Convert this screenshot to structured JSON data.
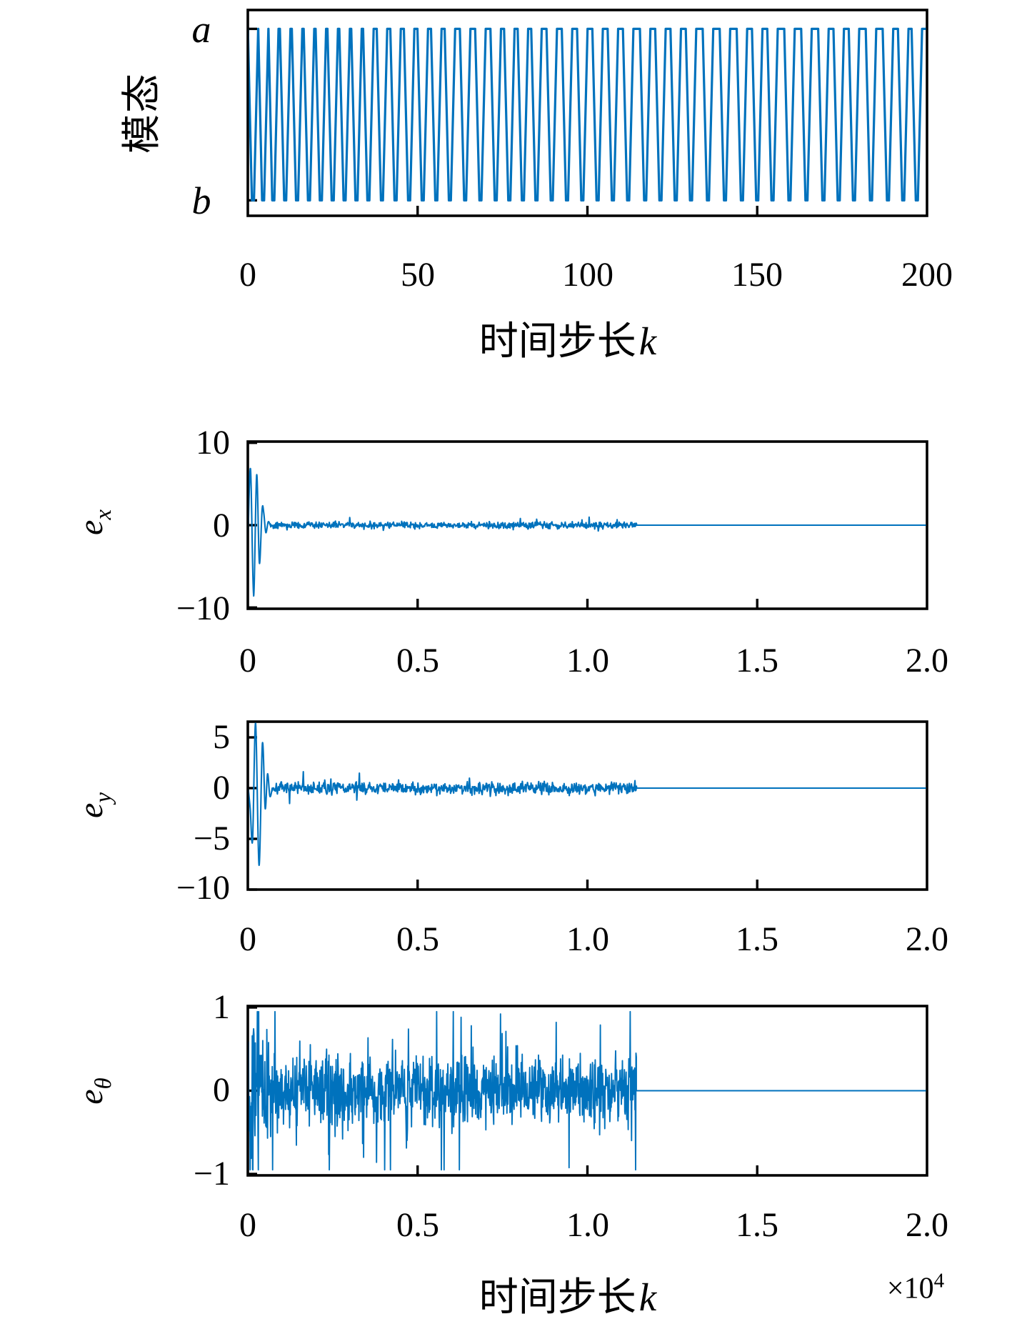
{
  "figure": {
    "background": "#ffffff",
    "frame_color": "#000000",
    "line_color": "#0072BD"
  },
  "text": {
    "p1": {
      "ylabel": "模态",
      "yt_a": "a",
      "yt_b": "b",
      "xt": [
        "0",
        "50",
        "100",
        "150",
        "200"
      ],
      "xlabel_cn": "时间步长",
      "xlabel_var": "k"
    },
    "p2": {
      "ylabel_e": "e",
      "ylabel_sub": "x",
      "yt": [
        "10",
        "0",
        "−10"
      ],
      "xt": [
        "0",
        "0.5",
        "1.0",
        "1.5",
        "2.0"
      ]
    },
    "p3": {
      "ylabel_e": "e",
      "ylabel_sub": "y",
      "yt": [
        "5",
        "0",
        "−5",
        "−10"
      ],
      "xt": [
        "0",
        "0.5",
        "1.0",
        "1.5",
        "2.0"
      ]
    },
    "p4": {
      "ylabel_e": "e",
      "ylabel_sub": "θ",
      "yt": [
        "1",
        "0",
        "−1"
      ],
      "xt": [
        "0",
        "0.5",
        "1.0",
        "1.5",
        "2.0"
      ],
      "xlabel_cn": "时间步长",
      "xlabel_var": "k",
      "exp_prefix": "×10",
      "exp_sup": "4"
    }
  },
  "chart_data": [
    {
      "id": "mode-switching",
      "type": "line",
      "title": "",
      "ylabel": "模态",
      "xlabel": "时间步长k",
      "xlim": [
        0,
        200
      ],
      "xticks": [
        0,
        50,
        100,
        150,
        200
      ],
      "xtick_labels": [
        "0",
        "50",
        "100",
        "150",
        "200"
      ],
      "ytick_labels": [
        "a",
        "b"
      ],
      "ytick_values": [
        1,
        0
      ],
      "ylim": [
        -0.09,
        1.11
      ],
      "grid": false,
      "line_color": "#0072BD",
      "stroke_width": 3.2,
      "behavior": "square wave switching between mode a (high) and mode b (low), narrow V dips to b",
      "signal": {
        "kind": "mode-square",
        "level_a": 1,
        "level_b": 0,
        "dip_half_width": 1.55,
        "dip_bottom_half": 0.3,
        "dips": [
          1.5,
          4.5,
          7.5,
          11,
          14.5,
          18,
          21.5,
          25,
          28.5,
          32,
          35.5,
          39.5,
          43.5,
          47.5,
          51.5,
          55.5,
          59.5,
          64,
          68.5,
          73,
          77,
          81,
          85,
          89.5,
          94,
          98.5,
          103,
          107.5,
          112,
          117,
          121.5,
          126,
          130.5,
          135.5,
          140.5,
          145.5,
          150,
          154.5,
          159.5,
          164.5,
          169.5,
          174,
          178.5,
          183.5,
          188.5,
          193,
          197
        ]
      }
    },
    {
      "id": "error-x",
      "type": "line",
      "title": "",
      "ylabel": "e_x",
      "xlabel": "",
      "xlim": [
        0,
        20000
      ],
      "xticks": [
        0,
        5000,
        10000,
        15000,
        20000
      ],
      "xtick_labels": [
        "0",
        "0.5",
        "1.0",
        "1.5",
        "2.0"
      ],
      "x_multiplier": "1e4",
      "ytick_values": [
        10,
        0,
        -10
      ],
      "ytick_labels": [
        "10",
        "0",
        "−10"
      ],
      "ylim": [
        -10.15,
        10.15
      ],
      "grid": false,
      "line_color": "#0072BD",
      "stroke_width": 2.1,
      "behavior": "damped oscillation peaking +6.8/−8.6 then small noise around 0, converges to exactly 0 after k≈1.15e4",
      "signal": {
        "kind": "transient-noise",
        "seed": 42,
        "transient": [
          [
            0,
            -2.5
          ],
          [
            80,
            6.8
          ],
          [
            170,
            -8.6
          ],
          [
            260,
            6.1
          ],
          [
            340,
            -4.6
          ],
          [
            420,
            1.9
          ],
          [
            470,
            1.5
          ],
          [
            530,
            -0.9
          ],
          [
            600,
            0.4
          ],
          [
            660,
            0
          ]
        ],
        "noise_start": 660,
        "noise_end": 11450,
        "noise_std": 0.2,
        "spike_prob": 0.04,
        "spike_gain": 2.4,
        "sample_step": 15,
        "flat_value": 0,
        "flat_end": 20000
      }
    },
    {
      "id": "error-y",
      "type": "line",
      "title": "",
      "ylabel": "e_y",
      "xlabel": "",
      "xlim": [
        0,
        20000
      ],
      "xticks": [
        0,
        5000,
        10000,
        15000,
        20000
      ],
      "xtick_labels": [
        "0",
        "0.5",
        "1.0",
        "1.5",
        "2.0"
      ],
      "x_multiplier": "1e4",
      "ytick_values": [
        5,
        0,
        -5,
        -10
      ],
      "ytick_labels": [
        "5",
        "0",
        "−5",
        "−10"
      ],
      "ylim": [
        -10,
        6.55
      ],
      "grid": false,
      "line_color": "#0072BD",
      "stroke_width": 2.1,
      "behavior": "damped oscillation peaking +6.4/−7.6 then noise around 0, converges to exactly 0 after k≈1.15e4",
      "signal": {
        "kind": "transient-noise",
        "seed": 7,
        "transient": [
          [
            0,
            0.3
          ],
          [
            70,
            -2
          ],
          [
            140,
            -5.1
          ],
          [
            230,
            6.4
          ],
          [
            330,
            -7.6
          ],
          [
            430,
            4.4
          ],
          [
            510,
            -2.0
          ],
          [
            580,
            1.4
          ],
          [
            650,
            -0.8
          ],
          [
            720,
            0
          ]
        ],
        "noise_start": 720,
        "noise_end": 11450,
        "noise_std": 0.3,
        "spike_prob": 0.04,
        "spike_gain": 2.2,
        "sample_step": 15,
        "flat_value": 0,
        "flat_end": 20000
      }
    },
    {
      "id": "error-theta",
      "type": "line",
      "title": "",
      "ylabel": "e_θ",
      "xlabel": "时间步长k",
      "xlim": [
        0,
        20000
      ],
      "xticks": [
        0,
        5000,
        10000,
        15000,
        20000
      ],
      "xtick_labels": [
        "0",
        "0.5",
        "1.0",
        "1.5",
        "2.0"
      ],
      "x_multiplier": "1e4",
      "ytick_values": [
        1,
        0,
        -1
      ],
      "ytick_labels": [
        "1",
        "0",
        "−1"
      ],
      "ylim": [
        -1.017,
        1.017
      ],
      "grid": false,
      "line_color": "#0072BD",
      "stroke_width": 1.9,
      "behavior": "dense noise band ±0.5 with initial excursions to ±0.9, converges to exactly 0 after k≈1.15e4",
      "signal": {
        "kind": "noise-phases",
        "seed": 13,
        "phases": [
          {
            "start": 0,
            "end": 350,
            "std": 0.5,
            "spike_prob": 0.1,
            "spike_gain": 1.7
          },
          {
            "start": 350,
            "end": 750,
            "std": 0.32,
            "spike_prob": 0.08,
            "spike_gain": 2.0
          },
          {
            "start": 750,
            "end": 11450,
            "std": 0.2,
            "spike_prob": 0.06,
            "spike_gain": 3.0
          }
        ],
        "clamp": 0.95,
        "sample_step": 10,
        "flat_value": 0,
        "flat_end": 20000
      }
    }
  ]
}
